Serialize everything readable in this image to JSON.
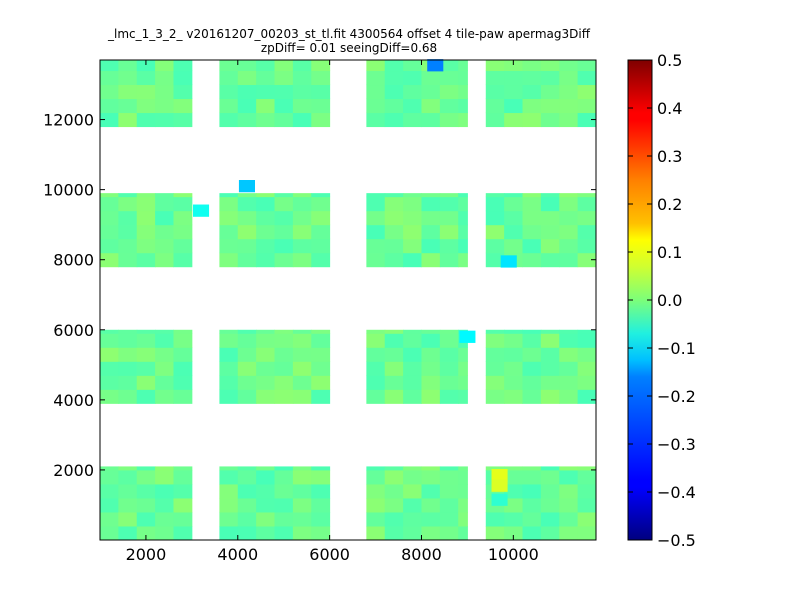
{
  "chart_data": {
    "type": "heatmap",
    "title_line1": "_lmc_1_3_2_ v20161207_00203_st_tl.fit 4300564 offset 4 tile-paw apermag3Diff",
    "title_line2": "zpDiff= 0.01 seeingDiff=0.68",
    "xlabel": "",
    "ylabel": "",
    "xlim": [
      1000,
      11800
    ],
    "ylim": [
      0,
      13700
    ],
    "xticks": [
      "2000",
      "4000",
      "6000",
      "8000",
      "10000"
    ],
    "yticks": [
      "2000",
      "4000",
      "6000",
      "8000",
      "10000",
      "12000"
    ],
    "colorbar": {
      "range": [
        -0.5,
        0.5
      ],
      "colormap": "jet",
      "ticks": [
        "0.5",
        "0.4",
        "0.3",
        "0.2",
        "0.1",
        "0.0",
        "−0.1",
        "−0.2",
        "−0.3",
        "−0.4",
        "−0.5"
      ]
    },
    "cell_size": 400,
    "bands_y": [
      [
        0,
        2100
      ],
      [
        3900,
        6000
      ],
      [
        7800,
        9900
      ],
      [
        11800,
        13700
      ]
    ],
    "columns_x": [
      [
        1000,
        3000
      ],
      [
        3600,
        6000
      ],
      [
        6800,
        9000
      ],
      [
        9400,
        11800
      ]
    ],
    "typical_value": -0.02,
    "outliers": [
      {
        "x": 8300,
        "y": 13550,
        "v": -0.25
      },
      {
        "x": 4200,
        "y": 10100,
        "v": -0.18
      },
      {
        "x": 9900,
        "y": 7950,
        "v": -0.15
      },
      {
        "x": 9000,
        "y": 5800,
        "v": -0.13
      },
      {
        "x": 3200,
        "y": 9400,
        "v": -0.11
      },
      {
        "x": 9700,
        "y": 1850,
        "v": 0.1
      },
      {
        "x": 9700,
        "y": 1550,
        "v": 0.09
      },
      {
        "x": 9700,
        "y": 1150,
        "v": -0.08
      }
    ]
  }
}
